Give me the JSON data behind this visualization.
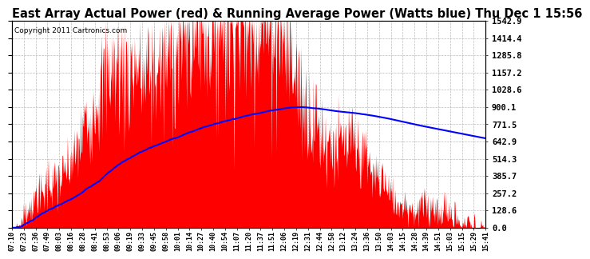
{
  "title": "East Array Actual Power (red) & Running Average Power (Watts blue) Thu Dec 1 15:56",
  "copyright": "Copyright 2011 Cartronics.com",
  "yticks": [
    0.0,
    128.6,
    257.2,
    385.7,
    514.3,
    642.9,
    771.5,
    900.1,
    1028.6,
    1157.2,
    1285.8,
    1414.4,
    1542.9
  ],
  "ymax": 1542.9,
  "bg_color": "#ffffff",
  "grid_color": "#aaaaaa",
  "fill_color": "#ff0000",
  "line_color": "#0000ff",
  "title_fontsize": 10.5,
  "copyright_fontsize": 6.5,
  "xtick_labels": [
    "07:10",
    "07:23",
    "07:36",
    "07:49",
    "08:03",
    "08:16",
    "08:28",
    "08:41",
    "08:53",
    "09:06",
    "09:19",
    "09:33",
    "09:45",
    "09:58",
    "10:01",
    "10:14",
    "10:27",
    "10:40",
    "10:54",
    "11:07",
    "11:20",
    "11:37",
    "11:51",
    "12:06",
    "12:19",
    "12:31",
    "12:44",
    "12:58",
    "13:12",
    "13:24",
    "13:36",
    "13:50",
    "14:03",
    "14:15",
    "14:28",
    "14:39",
    "14:51",
    "15:03",
    "15:15",
    "15:29",
    "15:41"
  ],
  "n_ticks": 41,
  "n_points": 820,
  "seed": 7
}
